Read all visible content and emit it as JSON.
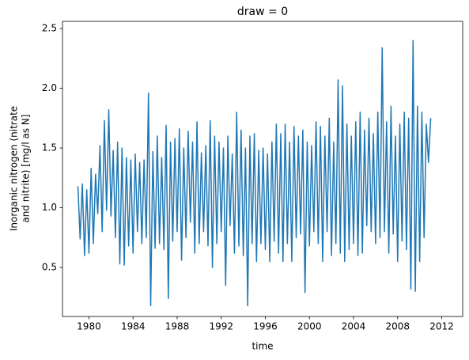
{
  "chart_data": {
    "type": "line",
    "title": "draw = 0",
    "xlabel": "time",
    "ylabel": [
      "Inorganic nitrogen (nitrate",
      "and nitrite) [mg/l as N]"
    ],
    "color": "#1f77b4",
    "xlim": [
      1977.6,
      2013.9
    ],
    "xticks": [
      1980,
      1984,
      1988,
      1992,
      1996,
      2000,
      2004,
      2008,
      2012
    ],
    "ylim": [
      0.09,
      2.56
    ],
    "yticks": [
      0.5,
      {
        "value": 1,
        "label": "1.0"
      },
      1.5,
      {
        "value": 2,
        "label": "2.0"
      },
      2.5
    ],
    "x": [
      1979.0,
      1979.2,
      1979.4,
      1979.6,
      1979.8,
      1980.0,
      1980.2,
      1980.4,
      1980.6,
      1980.8,
      1981.0,
      1981.2,
      1981.4,
      1981.6,
      1981.8,
      1982.0,
      1982.2,
      1982.4,
      1982.6,
      1982.8,
      1983.0,
      1983.2,
      1983.4,
      1983.6,
      1983.8,
      1984.0,
      1984.2,
      1984.4,
      1984.6,
      1984.8,
      1985.0,
      1985.2,
      1985.4,
      1985.6,
      1985.8,
      1986.0,
      1986.2,
      1986.4,
      1986.6,
      1986.8,
      1987.0,
      1987.2,
      1987.4,
      1987.6,
      1987.8,
      1988.0,
      1988.2,
      1988.4,
      1988.6,
      1988.8,
      1989.0,
      1989.2,
      1989.4,
      1989.6,
      1989.8,
      1990.0,
      1990.2,
      1990.4,
      1990.6,
      1990.8,
      1991.0,
      1991.2,
      1991.4,
      1991.6,
      1991.8,
      1992.0,
      1992.2,
      1992.4,
      1992.6,
      1992.8,
      1993.0,
      1993.2,
      1993.4,
      1993.6,
      1993.8,
      1994.0,
      1994.2,
      1994.4,
      1994.6,
      1994.8,
      1995.0,
      1995.2,
      1995.4,
      1995.6,
      1995.8,
      1996.0,
      1996.2,
      1996.4,
      1996.6,
      1996.8,
      1997.0,
      1997.2,
      1997.4,
      1997.6,
      1997.8,
      1998.0,
      1998.2,
      1998.4,
      1998.6,
      1998.8,
      1999.0,
      1999.2,
      1999.4,
      1999.6,
      1999.8,
      2000.0,
      2000.2,
      2000.4,
      2000.6,
      2000.8,
      2001.0,
      2001.2,
      2001.4,
      2001.6,
      2001.8,
      2002.0,
      2002.2,
      2002.4,
      2002.6,
      2002.8,
      2003.0,
      2003.2,
      2003.4,
      2003.6,
      2003.8,
      2004.0,
      2004.2,
      2004.4,
      2004.6,
      2004.8,
      2005.0,
      2005.2,
      2005.4,
      2005.6,
      2005.8,
      2006.0,
      2006.2,
      2006.4,
      2006.6,
      2006.8,
      2007.0,
      2007.2,
      2007.4,
      2007.6,
      2007.8,
      2008.0,
      2008.2,
      2008.4,
      2008.6,
      2008.8,
      2009.0,
      2009.2,
      2009.4,
      2009.6,
      2009.8,
      2010.0,
      2010.2,
      2010.4,
      2010.6,
      2010.8,
      2011.0
    ],
    "values": [
      1.18,
      0.74,
      1.2,
      0.6,
      1.15,
      0.62,
      1.33,
      0.7,
      1.28,
      0.95,
      1.52,
      0.8,
      1.73,
      0.98,
      1.82,
      0.93,
      1.48,
      0.75,
      1.55,
      0.53,
      1.5,
      0.52,
      1.42,
      0.68,
      1.4,
      0.62,
      1.45,
      0.8,
      1.38,
      0.7,
      1.4,
      0.75,
      1.96,
      0.18,
      1.47,
      0.66,
      1.6,
      0.7,
      1.42,
      0.65,
      1.69,
      0.24,
      1.55,
      0.72,
      1.58,
      0.8,
      1.66,
      0.56,
      1.5,
      0.75,
      1.64,
      0.88,
      1.55,
      0.62,
      1.72,
      0.7,
      1.46,
      0.8,
      1.52,
      0.68,
      1.73,
      0.5,
      1.6,
      0.7,
      1.55,
      0.8,
      1.5,
      0.35,
      1.6,
      0.85,
      1.45,
      0.62,
      1.8,
      0.68,
      1.65,
      0.6,
      1.5,
      0.18,
      1.6,
      0.7,
      1.62,
      0.55,
      1.48,
      0.7,
      1.5,
      0.65,
      1.45,
      0.55,
      1.55,
      0.72,
      1.7,
      0.62,
      1.62,
      0.55,
      1.7,
      0.7,
      1.55,
      0.55,
      1.68,
      0.75,
      1.6,
      0.78,
      1.65,
      0.29,
      1.55,
      0.68,
      1.52,
      0.8,
      1.72,
      0.7,
      1.68,
      0.55,
      1.6,
      0.8,
      1.75,
      0.6,
      1.55,
      0.7,
      2.07,
      0.62,
      2.02,
      0.55,
      1.7,
      0.65,
      1.6,
      0.7,
      1.72,
      0.6,
      1.8,
      0.62,
      1.65,
      0.85,
      1.75,
      0.8,
      1.62,
      0.7,
      1.8,
      0.75,
      2.34,
      0.8,
      1.72,
      0.62,
      1.85,
      0.78,
      1.6,
      0.55,
      1.7,
      0.72,
      1.8,
      0.65,
      1.75,
      0.32,
      2.4,
      0.3,
      1.85,
      0.55,
      1.8,
      0.75,
      1.7,
      1.38,
      1.75
    ]
  }
}
